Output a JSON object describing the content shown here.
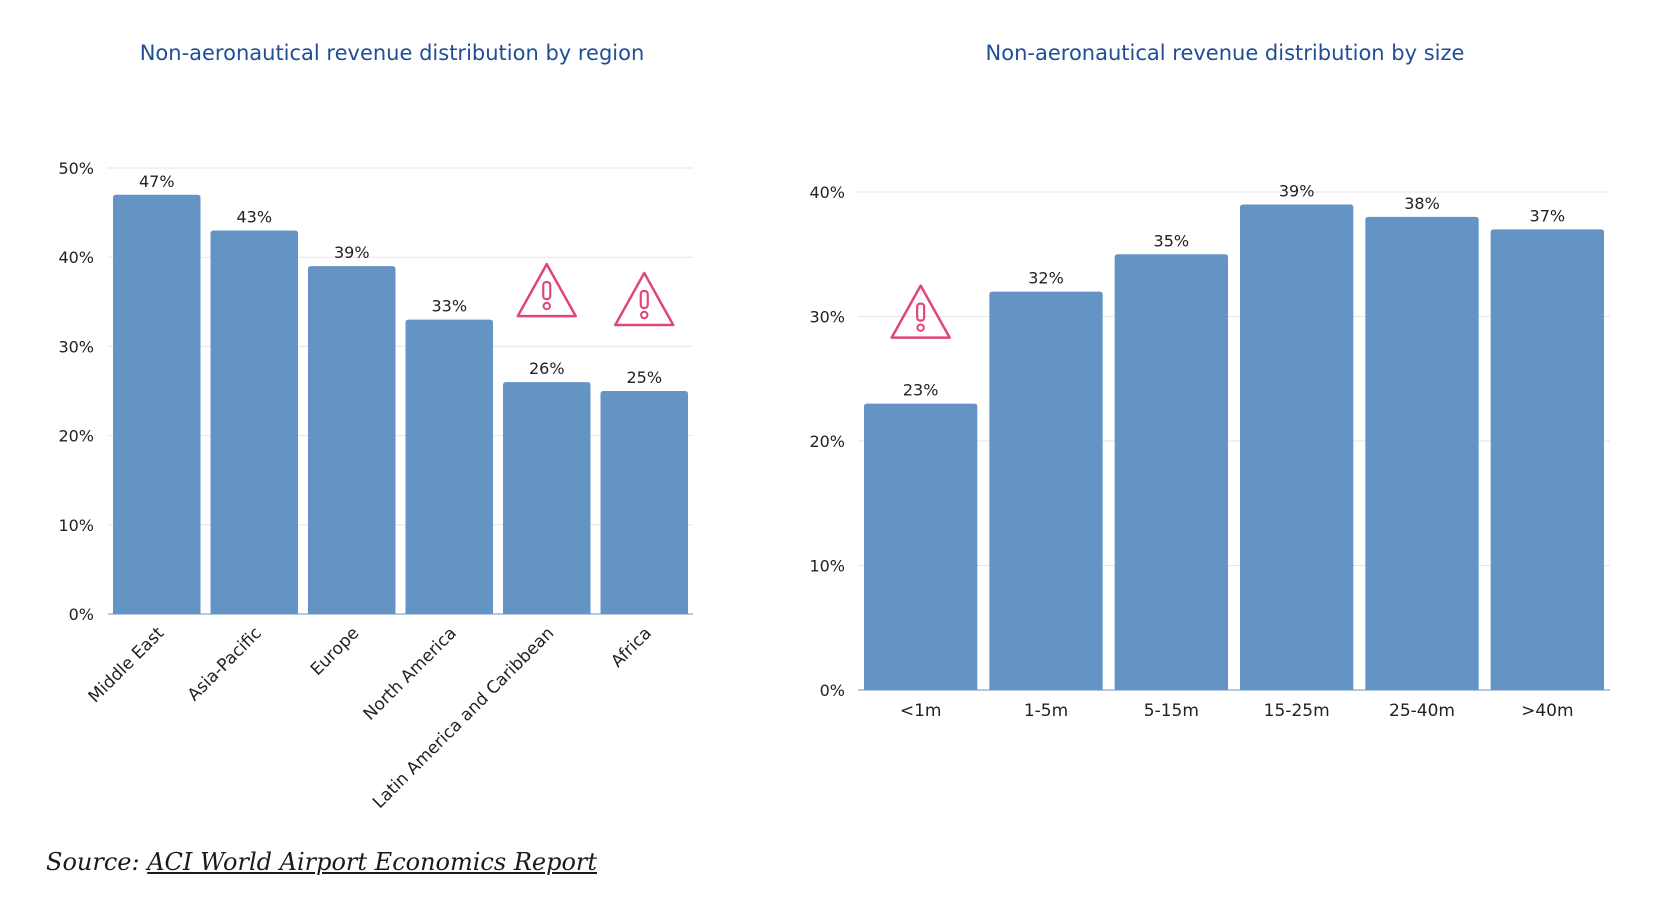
{
  "colors": {
    "bar": "#6494c4",
    "title": "#1f4e96",
    "warning": "#e0457b"
  },
  "icons": {
    "warning": "warning-triangle-icon"
  },
  "chart_data": [
    {
      "type": "bar",
      "title": "Non-aeronautical revenue distribution by region",
      "xlabel": "",
      "ylabel": "",
      "categories": [
        "Middle East",
        "Asia-Pacific",
        "Europe",
        "North America",
        "Latin America and Caribbean",
        "Africa"
      ],
      "values": [
        47,
        43,
        39,
        33,
        26,
        25
      ],
      "data_labels": [
        "47%",
        "43%",
        "39%",
        "33%",
        "26%",
        "25%"
      ],
      "ylim": [
        0,
        50
      ],
      "yticks": [
        0,
        10,
        20,
        30,
        40,
        50
      ],
      "ytick_labels": [
        "0%",
        "10%",
        "20%",
        "30%",
        "40%",
        "50%"
      ],
      "warning_categories": [
        "Latin America and Caribbean",
        "Africa"
      ],
      "category_label_rotation": "rotated -45 degrees",
      "grid": true,
      "legend": "none"
    },
    {
      "type": "bar",
      "title": "Non-aeronautical revenue distribution by size",
      "xlabel": "",
      "ylabel": "",
      "categories": [
        "<1m",
        "1-5m",
        "5-15m",
        "15-25m",
        "25-40m",
        ">40m"
      ],
      "values": [
        23,
        32,
        35,
        39,
        38,
        37
      ],
      "data_labels": [
        "23%",
        "32%",
        "35%",
        "39%",
        "38%",
        "37%"
      ],
      "ylim": [
        0,
        40
      ],
      "yticks": [
        0,
        10,
        20,
        30,
        40
      ],
      "ytick_labels": [
        "0%",
        "10%",
        "20%",
        "30%",
        "40%"
      ],
      "warning_categories": [
        "<1m"
      ],
      "category_label_rotation": "horizontal",
      "grid": true,
      "legend": "none"
    }
  ],
  "source": {
    "prefix": "Source:",
    "link_text": "ACI World Airport Economics Report"
  }
}
